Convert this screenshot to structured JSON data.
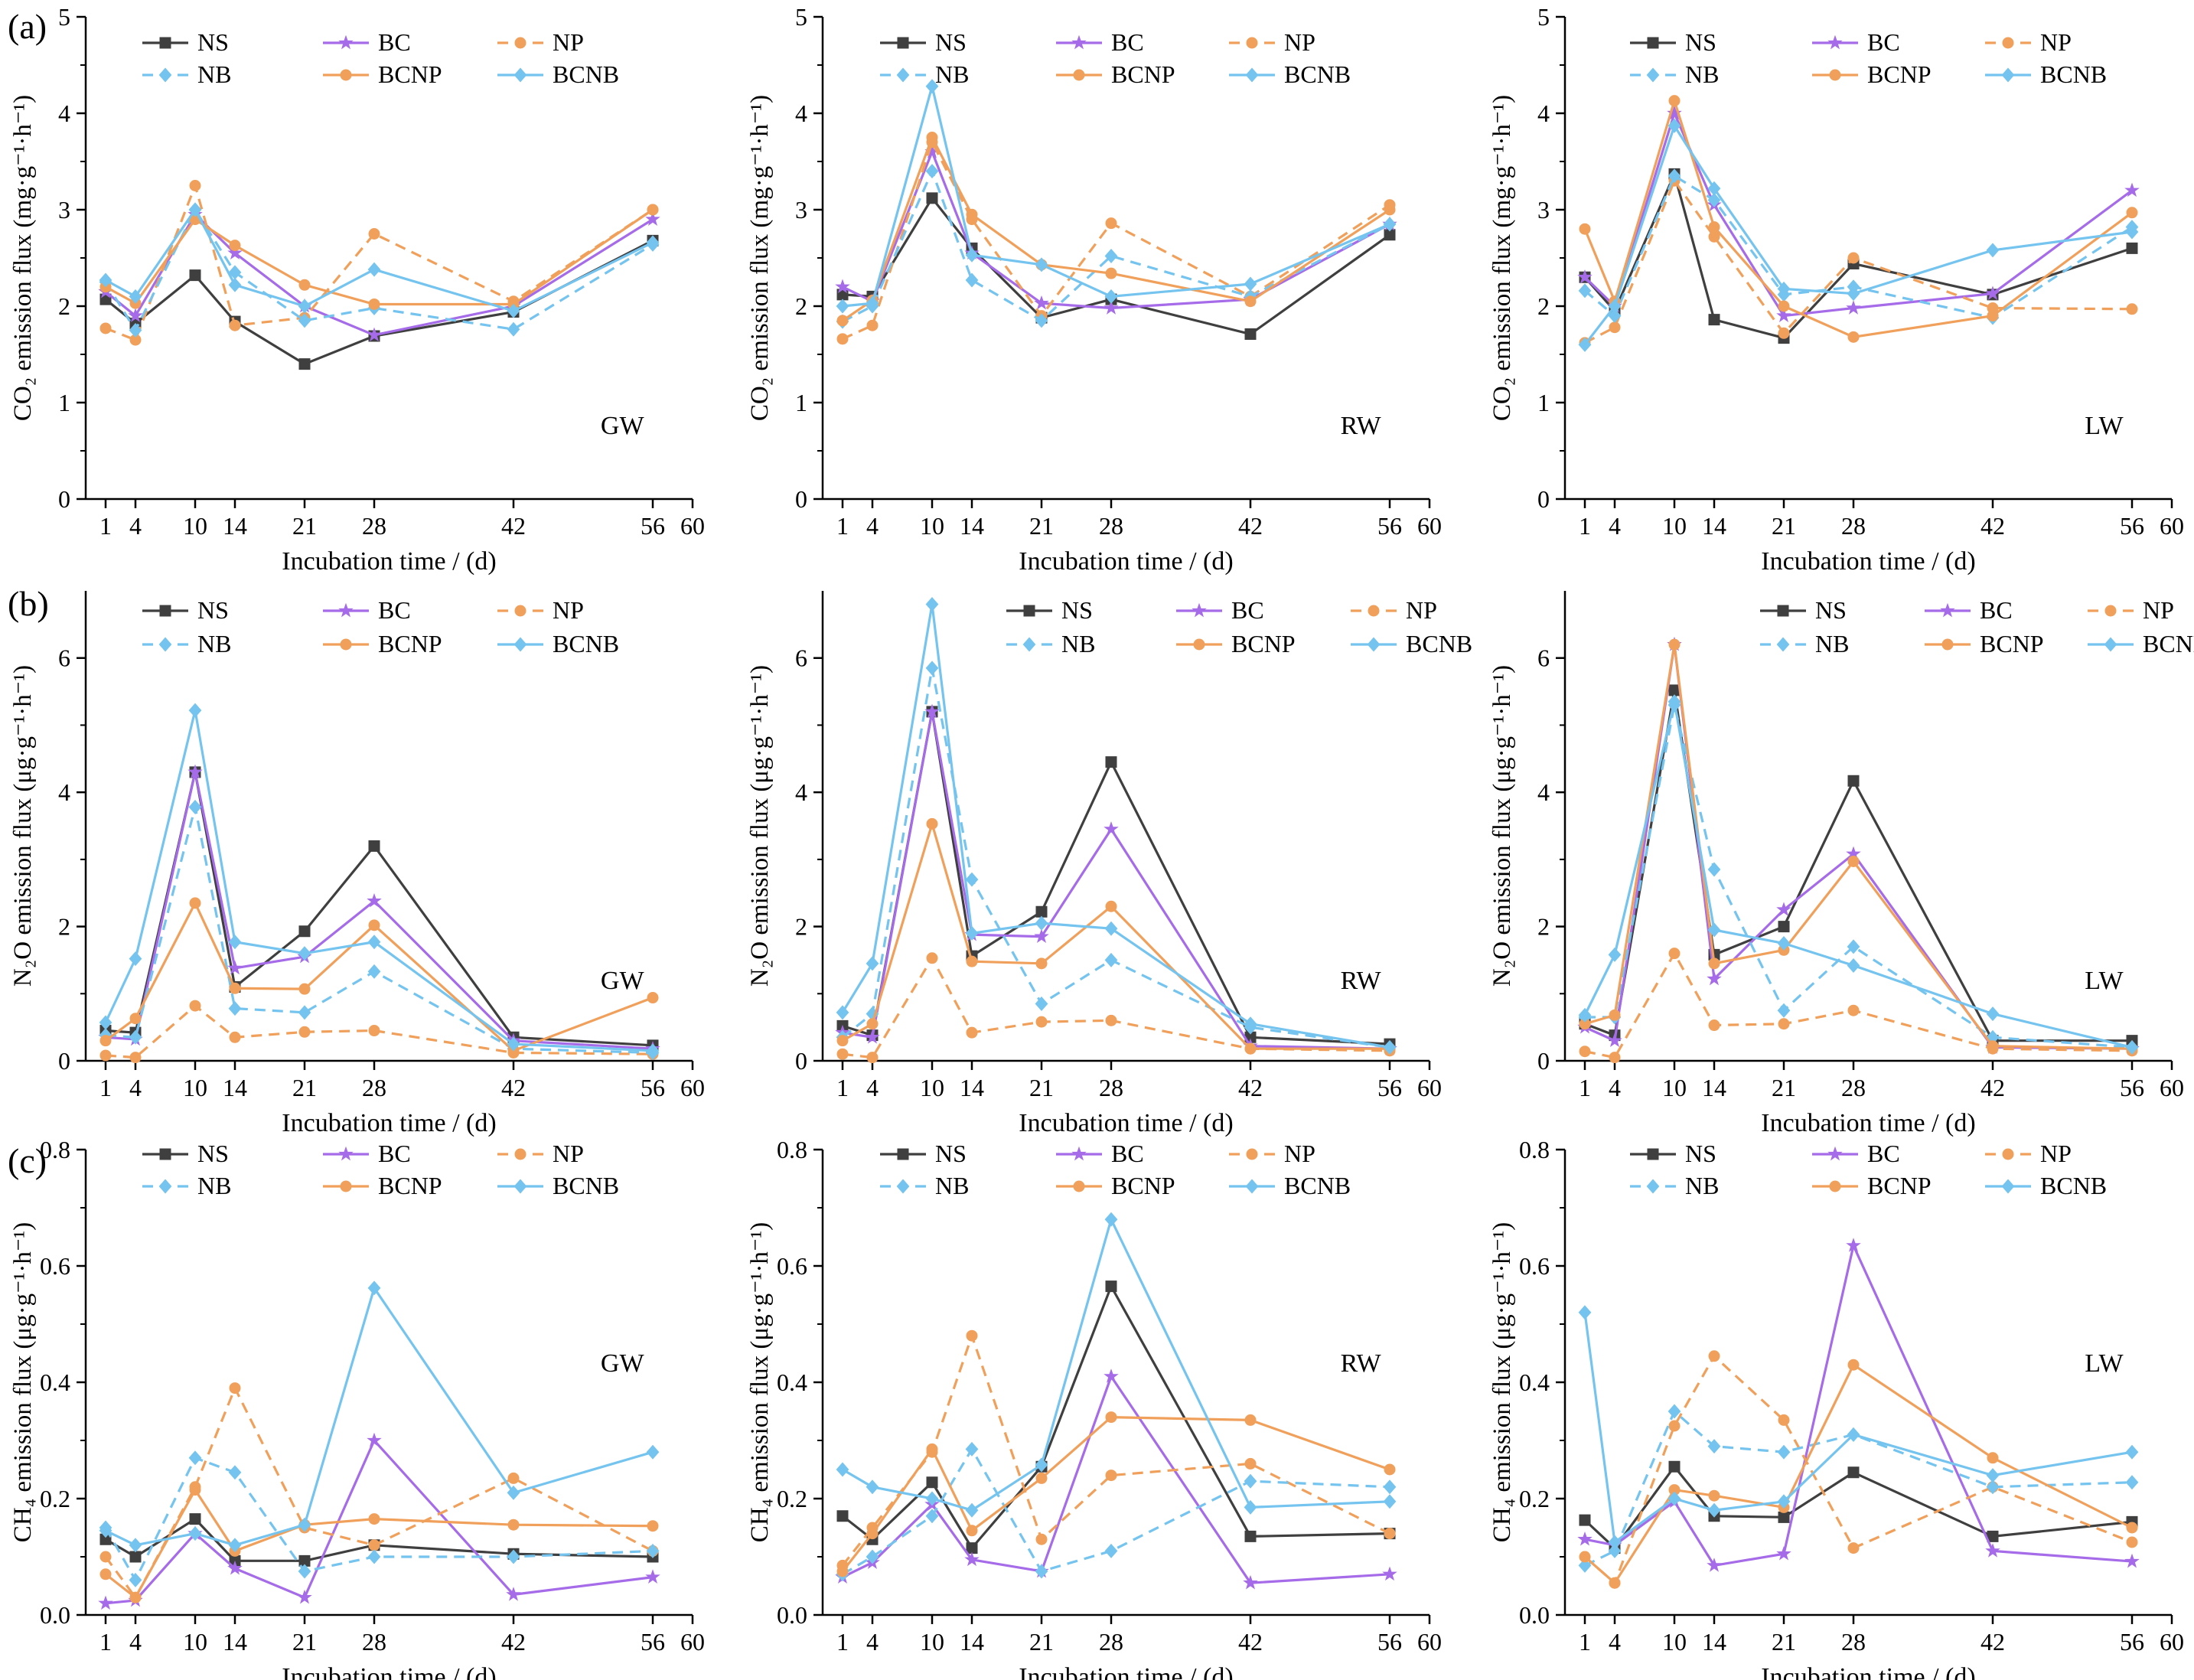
{
  "figure": {
    "row_labels": [
      "(a)",
      "(b)",
      "(c)"
    ],
    "x_ticks": [
      1,
      4,
      10,
      14,
      21,
      28,
      42,
      56,
      60
    ],
    "xlabel": "Incubation time / (d)"
  },
  "series_styles": {
    "NS": {
      "color": "#3f3f3f",
      "marker": "square",
      "dash": false
    },
    "BC": {
      "color": "#a56be8",
      "marker": "star",
      "dash": false
    },
    "NP": {
      "color": "#f0a05a",
      "marker": "circle",
      "dash": true
    },
    "NB": {
      "color": "#74c4ef",
      "marker": "diamond",
      "dash": true
    },
    "BCNP": {
      "color": "#f0a05a",
      "marker": "circle",
      "dash": false
    },
    "BCNB": {
      "color": "#74c4ef",
      "marker": "diamond",
      "dash": false
    }
  },
  "legend_order": [
    "NS",
    "BC",
    "NP",
    "NB",
    "BCNP",
    "BCNB"
  ],
  "chart_data": [
    {
      "type": "line",
      "row": 0,
      "col": 0,
      "site": "GW",
      "ylabel": "CO₂ emission flux (mg·g⁻¹·h⁻¹)",
      "ylim": [
        0,
        5
      ],
      "yticks": [
        0,
        1,
        2,
        3,
        4,
        5
      ],
      "xlim": [
        -1,
        60
      ],
      "x": [
        1,
        4,
        10,
        14,
        21,
        28,
        42,
        56
      ],
      "series": [
        {
          "name": "NS",
          "values": [
            2.07,
            1.82,
            2.32,
            1.84,
            1.4,
            1.69,
            1.94,
            2.68
          ]
        },
        {
          "name": "BC",
          "values": [
            2.15,
            1.9,
            2.95,
            2.55,
            2.0,
            1.7,
            2.0,
            2.9
          ]
        },
        {
          "name": "NP",
          "values": [
            1.77,
            1.65,
            3.25,
            1.8,
            1.88,
            2.75,
            2.05,
            3.0
          ]
        },
        {
          "name": "NB",
          "values": [
            2.25,
            1.75,
            3.0,
            2.35,
            1.85,
            1.98,
            1.76,
            2.64
          ]
        },
        {
          "name": "BCNP",
          "values": [
            2.2,
            2.03,
            2.9,
            2.63,
            2.22,
            2.02,
            2.02,
            3.0
          ]
        },
        {
          "name": "BCNB",
          "values": [
            2.27,
            2.1,
            3.0,
            2.22,
            2.0,
            2.38,
            1.95,
            2.66
          ]
        }
      ]
    },
    {
      "type": "line",
      "row": 0,
      "col": 1,
      "site": "RW",
      "ylabel": "CO₂ emission flux (mg·g⁻¹·h⁻¹)",
      "ylim": [
        0,
        5
      ],
      "yticks": [
        0,
        1,
        2,
        3,
        4,
        5
      ],
      "xlim": [
        -1,
        60
      ],
      "x": [
        1,
        4,
        10,
        14,
        21,
        28,
        42,
        56
      ],
      "series": [
        {
          "name": "NS",
          "values": [
            2.12,
            2.1,
            3.12,
            2.6,
            1.88,
            2.07,
            1.71,
            2.74
          ]
        },
        {
          "name": "BC",
          "values": [
            2.2,
            2.05,
            3.6,
            2.55,
            2.03,
            1.98,
            2.07,
            2.85
          ]
        },
        {
          "name": "NP",
          "values": [
            1.66,
            1.8,
            3.7,
            2.9,
            1.9,
            2.86,
            2.1,
            3.05
          ]
        },
        {
          "name": "NB",
          "values": [
            1.84,
            2.0,
            3.4,
            2.27,
            1.85,
            2.52,
            2.1,
            2.85
          ]
        },
        {
          "name": "BCNP",
          "values": [
            1.85,
            2.06,
            3.75,
            2.95,
            2.43,
            2.34,
            2.05,
            3.0
          ]
        },
        {
          "name": "BCNB",
          "values": [
            2.0,
            2.03,
            4.28,
            2.53,
            2.43,
            2.1,
            2.23,
            2.85
          ]
        }
      ]
    },
    {
      "type": "line",
      "row": 0,
      "col": 2,
      "site": "LW",
      "ylabel": "CO₂ emission flux (mg·g⁻¹·h⁻¹)",
      "ylim": [
        0,
        5
      ],
      "yticks": [
        0,
        1,
        2,
        3,
        4,
        5
      ],
      "xlim": [
        -1,
        60
      ],
      "x": [
        1,
        4,
        10,
        14,
        21,
        28,
        42,
        56
      ],
      "series": [
        {
          "name": "NS",
          "values": [
            2.3,
            1.95,
            3.37,
            1.86,
            1.67,
            2.44,
            2.12,
            2.6
          ]
        },
        {
          "name": "BC",
          "values": [
            2.3,
            2.0,
            4.0,
            3.05,
            1.9,
            1.98,
            2.13,
            3.2
          ]
        },
        {
          "name": "NP",
          "values": [
            1.62,
            1.78,
            3.3,
            2.72,
            1.72,
            2.5,
            1.98,
            1.97
          ]
        },
        {
          "name": "NB",
          "values": [
            2.16,
            1.9,
            3.35,
            3.1,
            2.12,
            2.2,
            1.88,
            2.82
          ]
        },
        {
          "name": "BCNP",
          "values": [
            2.8,
            2.05,
            4.13,
            2.82,
            2.0,
            1.68,
            1.9,
            2.97
          ]
        },
        {
          "name": "BCNB",
          "values": [
            1.6,
            2.0,
            3.87,
            3.22,
            2.18,
            2.13,
            2.58,
            2.77
          ]
        }
      ]
    },
    {
      "type": "line",
      "row": 1,
      "col": 0,
      "site": "GW",
      "ylabel": "N₂O emission flux (μg·g⁻¹·h⁻¹)",
      "ylim": [
        0,
        7
      ],
      "yticks": [
        0,
        2,
        4,
        6
      ],
      "xlim": [
        -1,
        60
      ],
      "x": [
        1,
        4,
        10,
        14,
        21,
        28,
        42,
        56
      ],
      "series": [
        {
          "name": "NS",
          "values": [
            0.45,
            0.42,
            4.3,
            1.1,
            1.93,
            3.2,
            0.35,
            0.23
          ]
        },
        {
          "name": "BC",
          "values": [
            0.35,
            0.32,
            4.3,
            1.38,
            1.55,
            2.38,
            0.3,
            0.18
          ]
        },
        {
          "name": "NP",
          "values": [
            0.08,
            0.05,
            0.82,
            0.35,
            0.43,
            0.45,
            0.12,
            0.1
          ]
        },
        {
          "name": "NB",
          "values": [
            0.38,
            0.35,
            3.78,
            0.78,
            0.72,
            1.33,
            0.18,
            0.12
          ]
        },
        {
          "name": "BCNP",
          "values": [
            0.3,
            0.63,
            2.35,
            1.08,
            1.07,
            2.02,
            0.15,
            0.94
          ]
        },
        {
          "name": "BCNB",
          "values": [
            0.57,
            1.52,
            5.22,
            1.77,
            1.6,
            1.77,
            0.25,
            0.15
          ]
        }
      ]
    },
    {
      "type": "line",
      "row": 1,
      "col": 1,
      "site": "RW",
      "ylabel": "N₂O emission flux (μg·g⁻¹·h⁻¹)",
      "ylim": [
        0,
        7
      ],
      "yticks": [
        0,
        2,
        4,
        6
      ],
      "xlim": [
        -1,
        60
      ],
      "x": [
        1,
        4,
        10,
        14,
        21,
        28,
        42,
        56
      ],
      "series": [
        {
          "name": "NS",
          "values": [
            0.52,
            0.38,
            5.2,
            1.56,
            2.22,
            4.45,
            0.35,
            0.25
          ]
        },
        {
          "name": "BC",
          "values": [
            0.42,
            0.35,
            5.2,
            1.88,
            1.85,
            3.45,
            0.22,
            0.18
          ]
        },
        {
          "name": "NP",
          "values": [
            0.1,
            0.05,
            1.53,
            0.42,
            0.58,
            0.6,
            0.18,
            0.15
          ]
        },
        {
          "name": "NB",
          "values": [
            0.35,
            0.7,
            5.85,
            2.7,
            0.85,
            1.5,
            0.5,
            0.2
          ]
        },
        {
          "name": "BCNP",
          "values": [
            0.3,
            0.55,
            3.53,
            1.48,
            1.45,
            2.3,
            0.18,
            0.18
          ]
        },
        {
          "name": "BCNB",
          "values": [
            0.72,
            1.45,
            6.8,
            1.9,
            2.05,
            1.97,
            0.55,
            0.2
          ]
        }
      ]
    },
    {
      "type": "line",
      "row": 1,
      "col": 2,
      "site": "LW",
      "ylabel": "N₂O emission flux (μg·g⁻¹·h⁻¹)",
      "ylim": [
        0,
        7
      ],
      "yticks": [
        0,
        2,
        4,
        6
      ],
      "xlim": [
        -1,
        60
      ],
      "x": [
        1,
        4,
        10,
        14,
        21,
        28,
        42,
        56
      ],
      "series": [
        {
          "name": "NS",
          "values": [
            0.55,
            0.38,
            5.52,
            1.58,
            2.0,
            4.17,
            0.3,
            0.3
          ]
        },
        {
          "name": "BC",
          "values": [
            0.5,
            0.3,
            6.2,
            1.22,
            2.25,
            3.08,
            0.2,
            0.18
          ]
        },
        {
          "name": "NP",
          "values": [
            0.14,
            0.05,
            1.6,
            0.53,
            0.55,
            0.75,
            0.18,
            0.15
          ]
        },
        {
          "name": "NB",
          "values": [
            0.65,
            0.65,
            5.3,
            2.85,
            0.75,
            1.7,
            0.35,
            0.2
          ]
        },
        {
          "name": "BCNP",
          "values": [
            0.55,
            0.68,
            6.2,
            1.45,
            1.65,
            2.97,
            0.22,
            0.18
          ]
        },
        {
          "name": "BCNB",
          "values": [
            0.68,
            1.58,
            5.35,
            1.95,
            1.75,
            1.42,
            0.7,
            0.2
          ]
        }
      ]
    },
    {
      "type": "line",
      "row": 2,
      "col": 0,
      "site": "GW",
      "ylabel": "CH₄ emission flux (μg·g⁻¹·h⁻¹)",
      "ylim": [
        0,
        0.8
      ],
      "yticks": [
        0.0,
        0.2,
        0.4,
        0.6,
        0.8
      ],
      "xlim": [
        -1,
        60
      ],
      "x": [
        1,
        4,
        10,
        14,
        21,
        28,
        42,
        56
      ],
      "series": [
        {
          "name": "NS",
          "values": [
            0.13,
            0.1,
            0.165,
            0.093,
            0.093,
            0.12,
            0.105,
            0.1
          ]
        },
        {
          "name": "BC",
          "values": [
            0.02,
            0.025,
            0.14,
            0.08,
            0.03,
            0.3,
            0.035,
            0.065
          ]
        },
        {
          "name": "NP",
          "values": [
            0.1,
            0.03,
            0.22,
            0.39,
            0.15,
            0.12,
            0.235,
            0.11
          ]
        },
        {
          "name": "NB",
          "values": [
            0.15,
            0.06,
            0.27,
            0.245,
            0.075,
            0.1,
            0.1,
            0.11
          ]
        },
        {
          "name": "BCNP",
          "values": [
            0.07,
            0.03,
            0.215,
            0.11,
            0.155,
            0.165,
            0.155,
            0.153
          ]
        },
        {
          "name": "BCNB",
          "values": [
            0.145,
            0.12,
            0.14,
            0.12,
            0.155,
            0.562,
            0.21,
            0.28
          ]
        }
      ]
    },
    {
      "type": "line",
      "row": 2,
      "col": 1,
      "site": "RW",
      "ylabel": "CH₄ emission flux (μg·g⁻¹·h⁻¹)",
      "ylim": [
        0,
        0.8
      ],
      "yticks": [
        0.0,
        0.2,
        0.4,
        0.6,
        0.8
      ],
      "xlim": [
        -1,
        60
      ],
      "x": [
        1,
        4,
        10,
        14,
        21,
        28,
        42,
        56
      ],
      "series": [
        {
          "name": "NS",
          "values": [
            0.17,
            0.13,
            0.228,
            0.115,
            0.255,
            0.565,
            0.135,
            0.14
          ]
        },
        {
          "name": "BC",
          "values": [
            0.065,
            0.09,
            0.19,
            0.095,
            0.075,
            0.41,
            0.055,
            0.07
          ]
        },
        {
          "name": "NP",
          "values": [
            0.085,
            0.15,
            0.28,
            0.48,
            0.13,
            0.24,
            0.26,
            0.14
          ]
        },
        {
          "name": "NB",
          "values": [
            0.07,
            0.1,
            0.17,
            0.285,
            0.075,
            0.11,
            0.23,
            0.22
          ]
        },
        {
          "name": "BCNP",
          "values": [
            0.075,
            0.14,
            0.285,
            0.145,
            0.235,
            0.34,
            0.335,
            0.25
          ]
        },
        {
          "name": "BCNB",
          "values": [
            0.25,
            0.22,
            0.2,
            0.18,
            0.258,
            0.68,
            0.185,
            0.195
          ]
        }
      ]
    },
    {
      "type": "line",
      "row": 2,
      "col": 2,
      "site": "LW",
      "ylabel": "CH₄ emission flux (μg·g⁻¹·h⁻¹)",
      "ylim": [
        0,
        0.8
      ],
      "yticks": [
        0.0,
        0.2,
        0.4,
        0.6,
        0.8
      ],
      "xlim": [
        -1,
        60
      ],
      "x": [
        1,
        4,
        10,
        14,
        21,
        28,
        42,
        56
      ],
      "series": [
        {
          "name": "NS",
          "values": [
            0.163,
            0.115,
            0.255,
            0.17,
            0.168,
            0.245,
            0.135,
            0.16
          ]
        },
        {
          "name": "BC",
          "values": [
            0.13,
            0.12,
            0.195,
            0.085,
            0.105,
            0.635,
            0.11,
            0.092
          ]
        },
        {
          "name": "NP",
          "values": [
            0.1,
            0.055,
            0.325,
            0.445,
            0.335,
            0.115,
            0.22,
            0.125
          ]
        },
        {
          "name": "NB",
          "values": [
            0.085,
            0.11,
            0.35,
            0.29,
            0.28,
            0.31,
            0.22,
            0.228
          ]
        },
        {
          "name": "BCNP",
          "values": [
            0.1,
            0.055,
            0.215,
            0.205,
            0.185,
            0.43,
            0.27,
            0.15
          ]
        },
        {
          "name": "BCNB",
          "values": [
            0.52,
            0.125,
            0.2,
            0.18,
            0.195,
            0.31,
            0.24,
            0.28
          ]
        }
      ]
    }
  ]
}
